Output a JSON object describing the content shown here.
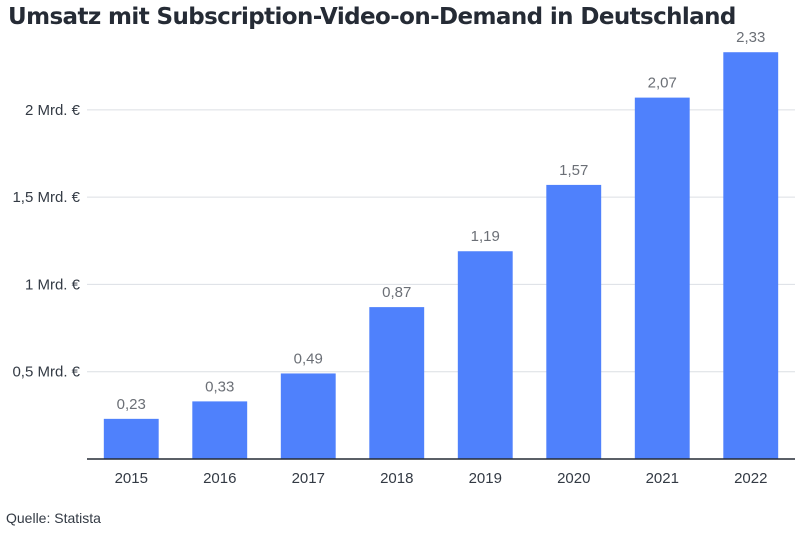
{
  "title": "Umsatz mit Subscription-Video-on-Demand in Deutschland",
  "source": "Quelle: Statista",
  "colors": {
    "bar": "#4f81fc",
    "grid": "#dcdfe4",
    "axis": "#252b35"
  },
  "chart_data": {
    "type": "bar",
    "title": "Umsatz mit Subscription-Video-on-Demand in Deutschland",
    "categories": [
      "2015",
      "2016",
      "2017",
      "2018",
      "2019",
      "2020",
      "2021",
      "2022"
    ],
    "values": [
      0.23,
      0.33,
      0.49,
      0.87,
      1.19,
      1.57,
      2.07,
      2.33
    ],
    "value_labels": [
      "0,23",
      "0,33",
      "0,49",
      "0,87",
      "1,19",
      "1,57",
      "2,07",
      "2,33"
    ],
    "ylim": [
      0,
      2.4
    ],
    "yticks": [
      0.5,
      1,
      1.5,
      2
    ],
    "ytick_labels": [
      "0,5 Mrd. €",
      "1 Mrd. €",
      "1,5 Mrd. €",
      "2 Mrd. €"
    ],
    "grid": true,
    "legend": "none"
  }
}
